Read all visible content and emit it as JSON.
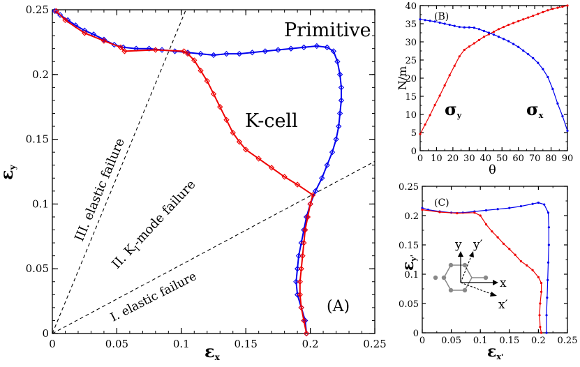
{
  "chart_data": [
    {
      "panel": "A",
      "type": "line",
      "panel_label": "(A)",
      "xlabel": "ε",
      "xlabel_sub": "x",
      "ylabel": "ε",
      "ylabel_sub": "y",
      "xlim": [
        0,
        0.25
      ],
      "ylim": [
        0,
        0.25
      ],
      "xticks": [
        0,
        0.05,
        0.1,
        0.15,
        0.2,
        0.25
      ],
      "yticks": [
        0,
        0.05,
        0.1,
        0.15,
        0.2,
        0.25
      ],
      "xtick_labels": [
        "0",
        "0.05",
        "0.1",
        "0.15",
        "0.2",
        "0.25"
      ],
      "ytick_labels": [
        "0",
        "0.05",
        "0.1",
        "0.15",
        "0.2",
        "0.25"
      ],
      "series": [
        {
          "name": "Primitive",
          "color": "#0000ee",
          "marker": "diamond",
          "points": [
            [
              0.197,
              0
            ],
            [
              0.196,
              0.01
            ],
            [
              0.193,
              0.02
            ],
            [
              0.19,
              0.03
            ],
            [
              0.189,
              0.04
            ],
            [
              0.19,
              0.05
            ],
            [
              0.191,
              0.06
            ],
            [
              0.193,
              0.07
            ],
            [
              0.195,
              0.08
            ],
            [
              0.197,
              0.09
            ],
            [
              0.2,
              0.1
            ],
            [
              0.204,
              0.11
            ],
            [
              0.209,
              0.12
            ],
            [
              0.213,
              0.13
            ],
            [
              0.217,
              0.14
            ],
            [
              0.22,
              0.15
            ],
            [
              0.222,
              0.16
            ],
            [
              0.223,
              0.17
            ],
            [
              0.224,
              0.18
            ],
            [
              0.224,
              0.19
            ],
            [
              0.223,
              0.2
            ],
            [
              0.221,
              0.21
            ],
            [
              0.218,
              0.218
            ],
            [
              0.213,
              0.221
            ],
            [
              0.205,
              0.222
            ],
            [
              0.195,
              0.221
            ],
            [
              0.185,
              0.22
            ],
            [
              0.175,
              0.219
            ],
            [
              0.165,
              0.218
            ],
            [
              0.155,
              0.217
            ],
            [
              0.145,
              0.216
            ],
            [
              0.135,
              0.216
            ],
            [
              0.125,
              0.215
            ],
            [
              0.115,
              0.216
            ],
            [
              0.105,
              0.217
            ],
            [
              0.095,
              0.218
            ],
            [
              0.085,
              0.219
            ],
            [
              0.075,
              0.22
            ],
            [
              0.065,
              0.22
            ],
            [
              0.055,
              0.221
            ],
            [
              0.048,
              0.223
            ],
            [
              0.04,
              0.227
            ],
            [
              0.032,
              0.231
            ],
            [
              0.025,
              0.234
            ],
            [
              0.018,
              0.238
            ],
            [
              0.012,
              0.242
            ],
            [
              0.006,
              0.246
            ],
            [
              0.002,
              0.249
            ]
          ]
        },
        {
          "name": "K-cell",
          "color": "#ee0000",
          "marker": "diamond",
          "points": [
            [
              0.197,
              0
            ],
            [
              0.195,
              0.01
            ],
            [
              0.193,
              0.02
            ],
            [
              0.192,
              0.03
            ],
            [
              0.192,
              0.04
            ],
            [
              0.193,
              0.05
            ],
            [
              0.194,
              0.06
            ],
            [
              0.195,
              0.07
            ],
            [
              0.196,
              0.08
            ],
            [
              0.198,
              0.09
            ],
            [
              0.2,
              0.1
            ],
            [
              0.202,
              0.107
            ],
            [
              0.19,
              0.115
            ],
            [
              0.18,
              0.121
            ],
            [
              0.17,
              0.128
            ],
            [
              0.16,
              0.135
            ],
            [
              0.15,
              0.142
            ],
            [
              0.145,
              0.148
            ],
            [
              0.14,
              0.155
            ],
            [
              0.135,
              0.165
            ],
            [
              0.13,
              0.175
            ],
            [
              0.125,
              0.185
            ],
            [
              0.12,
              0.195
            ],
            [
              0.115,
              0.203
            ],
            [
              0.11,
              0.211
            ],
            [
              0.105,
              0.216
            ],
            [
              0.102,
              0.218
            ],
            [
              0.08,
              0.219
            ],
            [
              0.056,
              0.218
            ],
            [
              0.053,
              0.221
            ],
            [
              0.04,
              0.226
            ],
            [
              0.025,
              0.232
            ],
            [
              0.01,
              0.242
            ],
            [
              0.003,
              0.249
            ]
          ]
        }
      ],
      "reference_lines": [
        {
          "label": "III. elastic failure",
          "slope_angle_deg": 67.5
        },
        {
          "label": "I. elastic failure",
          "slope_angle_deg": 28
        }
      ],
      "region_label_II": "II. K",
      "region_label_II_sub": "I",
      "region_label_II_rest": "-mode failure",
      "series_label_primitive": "Primitive",
      "series_label_kcell": "K-cell"
    },
    {
      "panel": "B",
      "type": "line",
      "panel_label": "(B)",
      "xlabel": "θ",
      "ylabel": "N/m",
      "xlim": [
        0,
        90
      ],
      "ylim": [
        0,
        40
      ],
      "xticks": [
        0,
        10,
        20,
        30,
        40,
        50,
        60,
        70,
        80,
        90
      ],
      "yticks": [
        0,
        5,
        10,
        15,
        20,
        25,
        30,
        35,
        40
      ],
      "xtick_labels": [
        "0",
        "10",
        "20",
        "30",
        "40",
        "50",
        "60",
        "70",
        "80",
        "90"
      ],
      "ytick_labels": [
        "0",
        "5",
        "10",
        "15",
        "20",
        "25",
        "30",
        "35",
        "40"
      ],
      "series": [
        {
          "name": "σy",
          "label": "σ",
          "label_sub": "y",
          "color": "#ee0000",
          "points": [
            [
              0,
              4.6
            ],
            [
              3,
              7.2
            ],
            [
              6,
              9.8
            ],
            [
              9,
              12.6
            ],
            [
              12,
              15.2
            ],
            [
              15,
              18
            ],
            [
              18,
              20.8
            ],
            [
              21,
              23.4
            ],
            [
              24,
              26
            ],
            [
              27,
              27.8
            ],
            [
              30,
              28.7
            ],
            [
              33,
              29.6
            ],
            [
              36,
              30.5
            ],
            [
              39,
              31.4
            ],
            [
              42,
              32.1
            ],
            [
              45,
              32.8
            ],
            [
              48,
              33.5
            ],
            [
              51,
              34.1
            ],
            [
              54,
              34.7
            ],
            [
              57,
              35.2
            ],
            [
              60,
              35.7
            ],
            [
              63,
              36.2
            ],
            [
              66,
              36.7
            ],
            [
              69,
              37.2
            ],
            [
              72,
              37.7
            ],
            [
              75,
              38.2
            ],
            [
              78,
              38.7
            ],
            [
              81,
              39.1
            ],
            [
              84,
              39.4
            ],
            [
              87,
              39.7
            ],
            [
              90,
              40
            ]
          ]
        },
        {
          "name": "σx",
          "label": "σ",
          "label_sub": "x",
          "color": "#0000ee",
          "points": [
            [
              0,
              36.2
            ],
            [
              3,
              36
            ],
            [
              6,
              35.8
            ],
            [
              9,
              35.6
            ],
            [
              12,
              35.3
            ],
            [
              15,
              35
            ],
            [
              18,
              34.7
            ],
            [
              21,
              34.4
            ],
            [
              24,
              34.1
            ],
            [
              27,
              34
            ],
            [
              30,
              34
            ],
            [
              33,
              33.9
            ],
            [
              36,
              33.5
            ],
            [
              39,
              33
            ],
            [
              42,
              32.5
            ],
            [
              45,
              32
            ],
            [
              48,
              31.4
            ],
            [
              51,
              30.8
            ],
            [
              54,
              30.2
            ],
            [
              57,
              29.4
            ],
            [
              60,
              28.6
            ],
            [
              63,
              27.6
            ],
            [
              66,
              26.6
            ],
            [
              69,
              25.5
            ],
            [
              72,
              24.2
            ],
            [
              75,
              22.5
            ],
            [
              78,
              20.3
            ],
            [
              81,
              17
            ],
            [
              84,
              13
            ],
            [
              87,
              9.5
            ],
            [
              90,
              5.5
            ]
          ]
        }
      ]
    },
    {
      "panel": "C",
      "type": "line",
      "panel_label": "(C)",
      "xlabel": "ε",
      "xlabel_sub": "x'",
      "ylabel": "ε",
      "ylabel_sub": "y'",
      "xlim": [
        0,
        0.25
      ],
      "ylim": [
        0,
        0.25
      ],
      "xticks": [
        0,
        0.05,
        0.1,
        0.15,
        0.2,
        0.25
      ],
      "yticks": [
        0,
        0.05,
        0.1,
        0.15,
        0.2,
        0.25
      ],
      "xtick_labels": [
        "0",
        "0.05",
        "0.1",
        "0.15",
        "0.2",
        "0.25"
      ],
      "ytick_labels": [
        "0",
        "0.05",
        "0.1",
        "0.15",
        "0.2",
        "0.25"
      ],
      "series": [
        {
          "name": "blue",
          "color": "#0000ee",
          "points": [
            [
              0,
              0.213
            ],
            [
              0.01,
              0.21
            ],
            [
              0.03,
              0.207
            ],
            [
              0.05,
              0.205
            ],
            [
              0.07,
              0.205
            ],
            [
              0.09,
              0.207
            ],
            [
              0.11,
              0.209
            ],
            [
              0.13,
              0.211
            ],
            [
              0.15,
              0.213
            ],
            [
              0.17,
              0.216
            ],
            [
              0.19,
              0.22
            ],
            [
              0.2,
              0.222
            ],
            [
              0.21,
              0.219
            ],
            [
              0.217,
              0.205
            ],
            [
              0.218,
              0.18
            ],
            [
              0.218,
              0.15
            ],
            [
              0.217,
              0.12
            ],
            [
              0.216,
              0.09
            ],
            [
              0.215,
              0.06
            ],
            [
              0.214,
              0.03
            ],
            [
              0.214,
              0
            ]
          ]
        },
        {
          "name": "red",
          "color": "#ee0000",
          "points": [
            [
              0,
              0.21
            ],
            [
              0.03,
              0.206
            ],
            [
              0.06,
              0.204
            ],
            [
              0.09,
              0.205
            ],
            [
              0.1,
              0.2
            ],
            [
              0.11,
              0.185
            ],
            [
              0.12,
              0.173
            ],
            [
              0.13,
              0.163
            ],
            [
              0.14,
              0.152
            ],
            [
              0.15,
              0.143
            ],
            [
              0.16,
              0.133
            ],
            [
              0.17,
              0.122
            ],
            [
              0.18,
              0.115
            ],
            [
              0.19,
              0.107
            ],
            [
              0.2,
              0.095
            ],
            [
              0.205,
              0.085
            ],
            [
              0.205,
              0.07
            ],
            [
              0.203,
              0.05
            ],
            [
              0.202,
              0.03
            ],
            [
              0.203,
              0.01
            ],
            [
              0.205,
              0
            ]
          ]
        }
      ],
      "inset_labels": {
        "x": "x",
        "y": "y",
        "xp": "x′",
        "yp": "y′"
      }
    }
  ]
}
